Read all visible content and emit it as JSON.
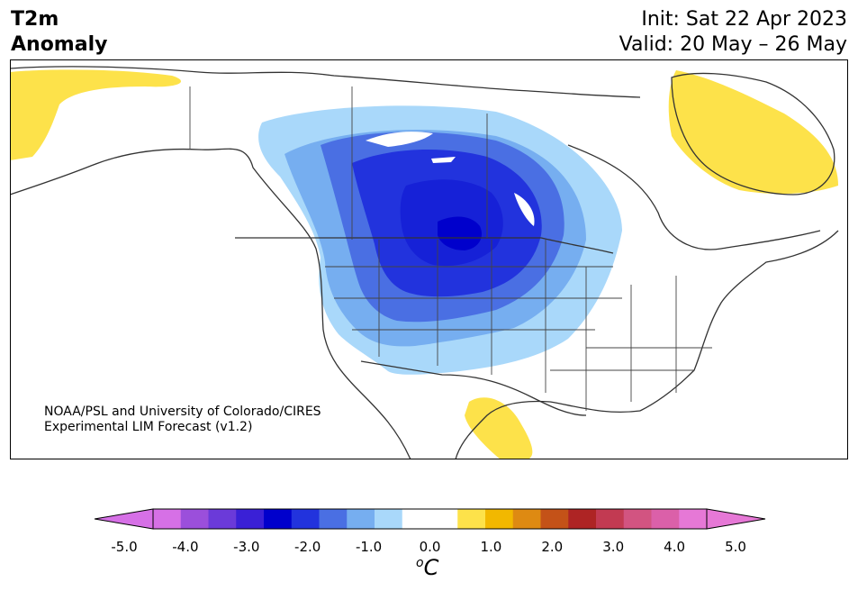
{
  "title": {
    "line1": "T2m",
    "line2": "Anomaly",
    "init": "Init: Sat 22 Apr 2023",
    "valid": "Valid: 20 May – 26 May"
  },
  "credit": {
    "line1": "NOAA/PSL and University of Colorado/CIRES",
    "line2": "Experimental LIM Forecast (v1.2)"
  },
  "colorbar": {
    "unit_base": "C",
    "unit_sup": "o",
    "ticks": [
      "-5.0",
      "-4.0",
      "-3.0",
      "-2.0",
      "-1.0",
      "0.0",
      "1.0",
      "2.0",
      "3.0",
      "4.0",
      "5.0"
    ],
    "colors": [
      "#d670e6",
      "#9b4fdb",
      "#6b3ad9",
      "#3a20d6",
      "#0000cc",
      "#2233dd",
      "#4a6fe3",
      "#76aef0",
      "#a9d8fa",
      "#ffffff",
      "#ffffff",
      "#fde24a",
      "#f2b800",
      "#de8a12",
      "#c45218",
      "#ae2424",
      "#c23a52",
      "#d25481",
      "#db60a9",
      "#e678d6"
    ],
    "under_color": "#d670e6",
    "over_color": "#e678d6"
  }
}
